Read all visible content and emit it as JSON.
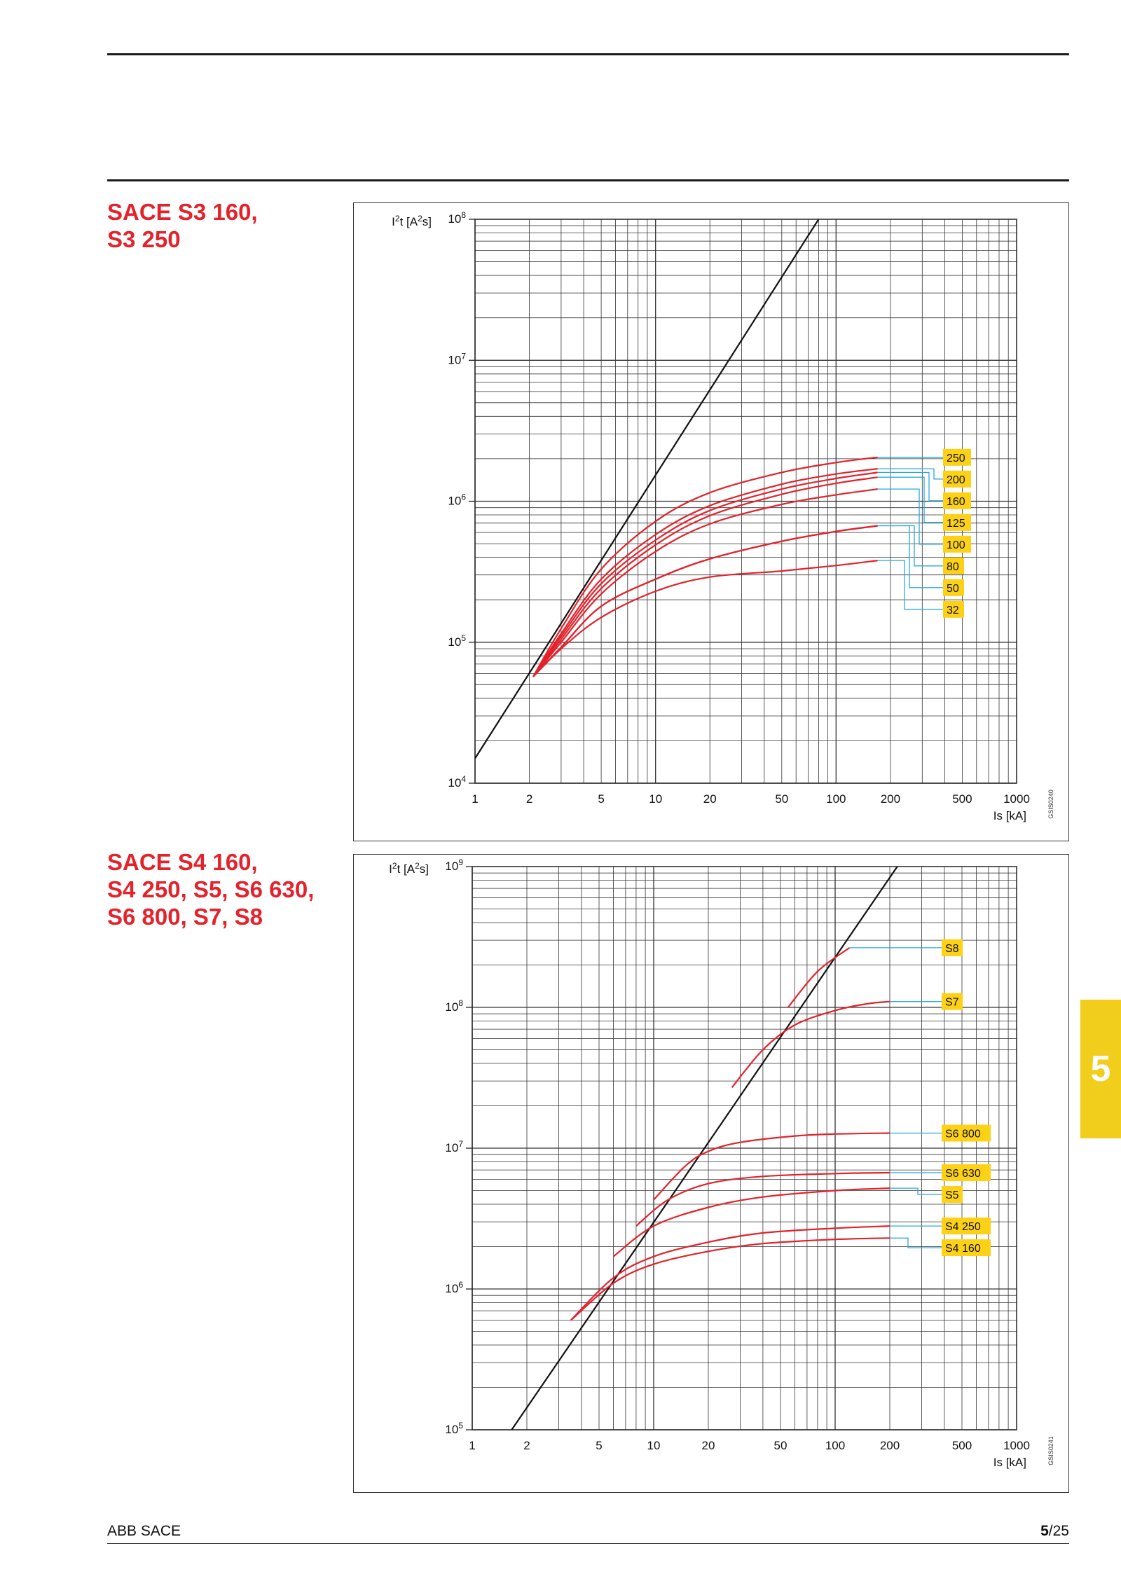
{
  "colors": {
    "curve": "#e3222b",
    "title": "#e3222b",
    "leader": "#29a9e0",
    "label_bg": "#fcd116",
    "tab_bg": "#f1cd1c",
    "ref_line": "#111111"
  },
  "section_tab": {
    "text": "5"
  },
  "footer": {
    "company": "ABB SACE",
    "page_current": "5",
    "page_total": "/25"
  },
  "charts": [
    {
      "heading": [
        "SACE S3 160,",
        "S3 250"
      ],
      "code": "GSIS0240"
    },
    {
      "heading": [
        "SACE S4 160,",
        "S4 250, S5, S6 630,",
        "S6 800, S7, S8"
      ],
      "code": "GSIS0241"
    }
  ],
  "chart_data": [
    {
      "type": "line",
      "x_scale": "log",
      "y_scale": "log",
      "xlim": [
        1,
        1000
      ],
      "ylim": [
        10000,
        100000000
      ],
      "ylabel": "I²t [A²s]",
      "xlabel": "Is [kA]",
      "x_ticks": [
        "1",
        "2",
        "5",
        "10",
        "20",
        "50",
        "100",
        "200",
        "500",
        "1000"
      ],
      "y_ticks": [
        {
          "base": "10",
          "exp": "4"
        },
        {
          "base": "10",
          "exp": "5"
        },
        {
          "base": "10",
          "exp": "6"
        },
        {
          "base": "10",
          "exp": "7"
        },
        {
          "base": "10",
          "exp": "8"
        }
      ],
      "grid": true,
      "reference_line": [
        [
          1,
          15000
        ],
        [
          80,
          100000000
        ]
      ],
      "series": [
        {
          "name": "250",
          "label_y": 2050000,
          "points": [
            [
              2.1,
              57000
            ],
            [
              3,
              125000
            ],
            [
              5,
              330000
            ],
            [
              10,
              720000
            ],
            [
              20,
              1150000
            ],
            [
              50,
              1600000
            ],
            [
              100,
              1880000
            ],
            [
              170,
              2050000
            ]
          ]
        },
        {
          "name": "200",
          "label_y": 1700000,
          "points": [
            [
              2.1,
              57000
            ],
            [
              3,
              115000
            ],
            [
              5,
              280000
            ],
            [
              10,
              580000
            ],
            [
              20,
              930000
            ],
            [
              50,
              1320000
            ],
            [
              100,
              1560000
            ],
            [
              170,
              1700000
            ]
          ]
        },
        {
          "name": "160",
          "label_y": 1600000,
          "points": [
            [
              2.1,
              57000
            ],
            [
              3,
              110000
            ],
            [
              5,
              260000
            ],
            [
              10,
              530000
            ],
            [
              20,
              860000
            ],
            [
              50,
              1220000
            ],
            [
              100,
              1450000
            ],
            [
              170,
              1600000
            ]
          ]
        },
        {
          "name": "125",
          "label_y": 1480000,
          "points": [
            [
              2.1,
              57000
            ],
            [
              3,
              105000
            ],
            [
              5,
              240000
            ],
            [
              10,
              490000
            ],
            [
              20,
              790000
            ],
            [
              50,
              1120000
            ],
            [
              100,
              1340000
            ],
            [
              170,
              1480000
            ]
          ]
        },
        {
          "name": "100",
          "label_y": 1220000,
          "points": [
            [
              2.1,
              57000
            ],
            [
              3,
              100000
            ],
            [
              5,
              220000
            ],
            [
              10,
              440000
            ],
            [
              20,
              690000
            ],
            [
              50,
              950000
            ],
            [
              100,
              1110000
            ],
            [
              170,
              1220000
            ]
          ]
        },
        {
          "name": "80",
          "label_y": 670000,
          "points": [
            [
              2.1,
              57000
            ],
            [
              3,
              92000
            ],
            [
              5,
              180000
            ],
            [
              10,
              280000
            ],
            [
              20,
              390000
            ],
            [
              50,
              520000
            ],
            [
              100,
              610000
            ],
            [
              170,
              670000
            ]
          ]
        },
        {
          "name": "50",
          "label_y": 670000,
          "points": [
            [
              2.1,
              57000
            ],
            [
              3,
              92000
            ],
            [
              5,
              180000
            ],
            [
              10,
              280000
            ],
            [
              20,
              390000
            ],
            [
              50,
              520000
            ],
            [
              100,
              610000
            ],
            [
              170,
              670000
            ]
          ]
        },
        {
          "name": "32",
          "label_y": 380000,
          "points": [
            [
              2.1,
              57000
            ],
            [
              3,
              90000
            ],
            [
              5,
              150000
            ],
            [
              10,
              230000
            ],
            [
              20,
              290000
            ],
            [
              50,
              320000
            ],
            [
              100,
              350000
            ],
            [
              170,
              380000
            ]
          ]
        }
      ]
    },
    {
      "type": "line",
      "x_scale": "log",
      "y_scale": "log",
      "xlim": [
        1,
        1000
      ],
      "ylim": [
        100000,
        1000000000
      ],
      "ylabel": "I²t [A²s]",
      "xlabel": "Is [kA]",
      "x_ticks": [
        "1",
        "2",
        "5",
        "10",
        "20",
        "50",
        "100",
        "200",
        "500",
        "1000"
      ],
      "y_ticks": [
        {
          "base": "10",
          "exp": "5"
        },
        {
          "base": "10",
          "exp": "6"
        },
        {
          "base": "10",
          "exp": "7"
        },
        {
          "base": "10",
          "exp": "8"
        },
        {
          "base": "10",
          "exp": "9"
        }
      ],
      "grid": true,
      "reference_line": [
        [
          1.65,
          100000
        ],
        [
          220,
          1000000000
        ]
      ],
      "series": [
        {
          "name": "S8",
          "label_y": 265000000,
          "points": [
            [
              55,
              100000000
            ],
            [
              80,
              180000000
            ],
            [
              120,
              265000000
            ]
          ]
        },
        {
          "name": "S7",
          "label_y": 110000000,
          "points": [
            [
              27,
              27000000
            ],
            [
              40,
              50000000
            ],
            [
              60,
              75000000
            ],
            [
              100,
              95000000
            ],
            [
              150,
              106000000
            ],
            [
              200,
              110000000
            ]
          ]
        },
        {
          "name": "S6 800",
          "label_y": 12800000,
          "points": [
            [
              10,
              4300000
            ],
            [
              15,
              7500000
            ],
            [
              20,
              9500000
            ],
            [
              30,
              11000000
            ],
            [
              60,
              12200000
            ],
            [
              100,
              12600000
            ],
            [
              200,
              12800000
            ]
          ]
        },
        {
          "name": "S6 630",
          "label_y": 6700000,
          "points": [
            [
              8,
              2800000
            ],
            [
              12,
              4300000
            ],
            [
              20,
              5600000
            ],
            [
              40,
              6300000
            ],
            [
              100,
              6600000
            ],
            [
              200,
              6700000
            ]
          ]
        },
        {
          "name": "S5",
          "label_y": 5200000,
          "points": [
            [
              6,
              1700000
            ],
            [
              10,
              2800000
            ],
            [
              20,
              3800000
            ],
            [
              40,
              4500000
            ],
            [
              100,
              5000000
            ],
            [
              200,
              5200000
            ]
          ]
        },
        {
          "name": "S4 250",
          "label_y": 2800000,
          "points": [
            [
              3.5,
              600000
            ],
            [
              6,
              1200000
            ],
            [
              10,
              1700000
            ],
            [
              20,
              2150000
            ],
            [
              40,
              2500000
            ],
            [
              100,
              2700000
            ],
            [
              200,
              2800000
            ]
          ]
        },
        {
          "name": "S4 160",
          "label_y": 2300000,
          "points": [
            [
              3.5,
              600000
            ],
            [
              6,
              1100000
            ],
            [
              10,
              1500000
            ],
            [
              20,
              1850000
            ],
            [
              40,
              2100000
            ],
            [
              100,
              2250000
            ],
            [
              200,
              2300000
            ]
          ]
        }
      ]
    }
  ]
}
